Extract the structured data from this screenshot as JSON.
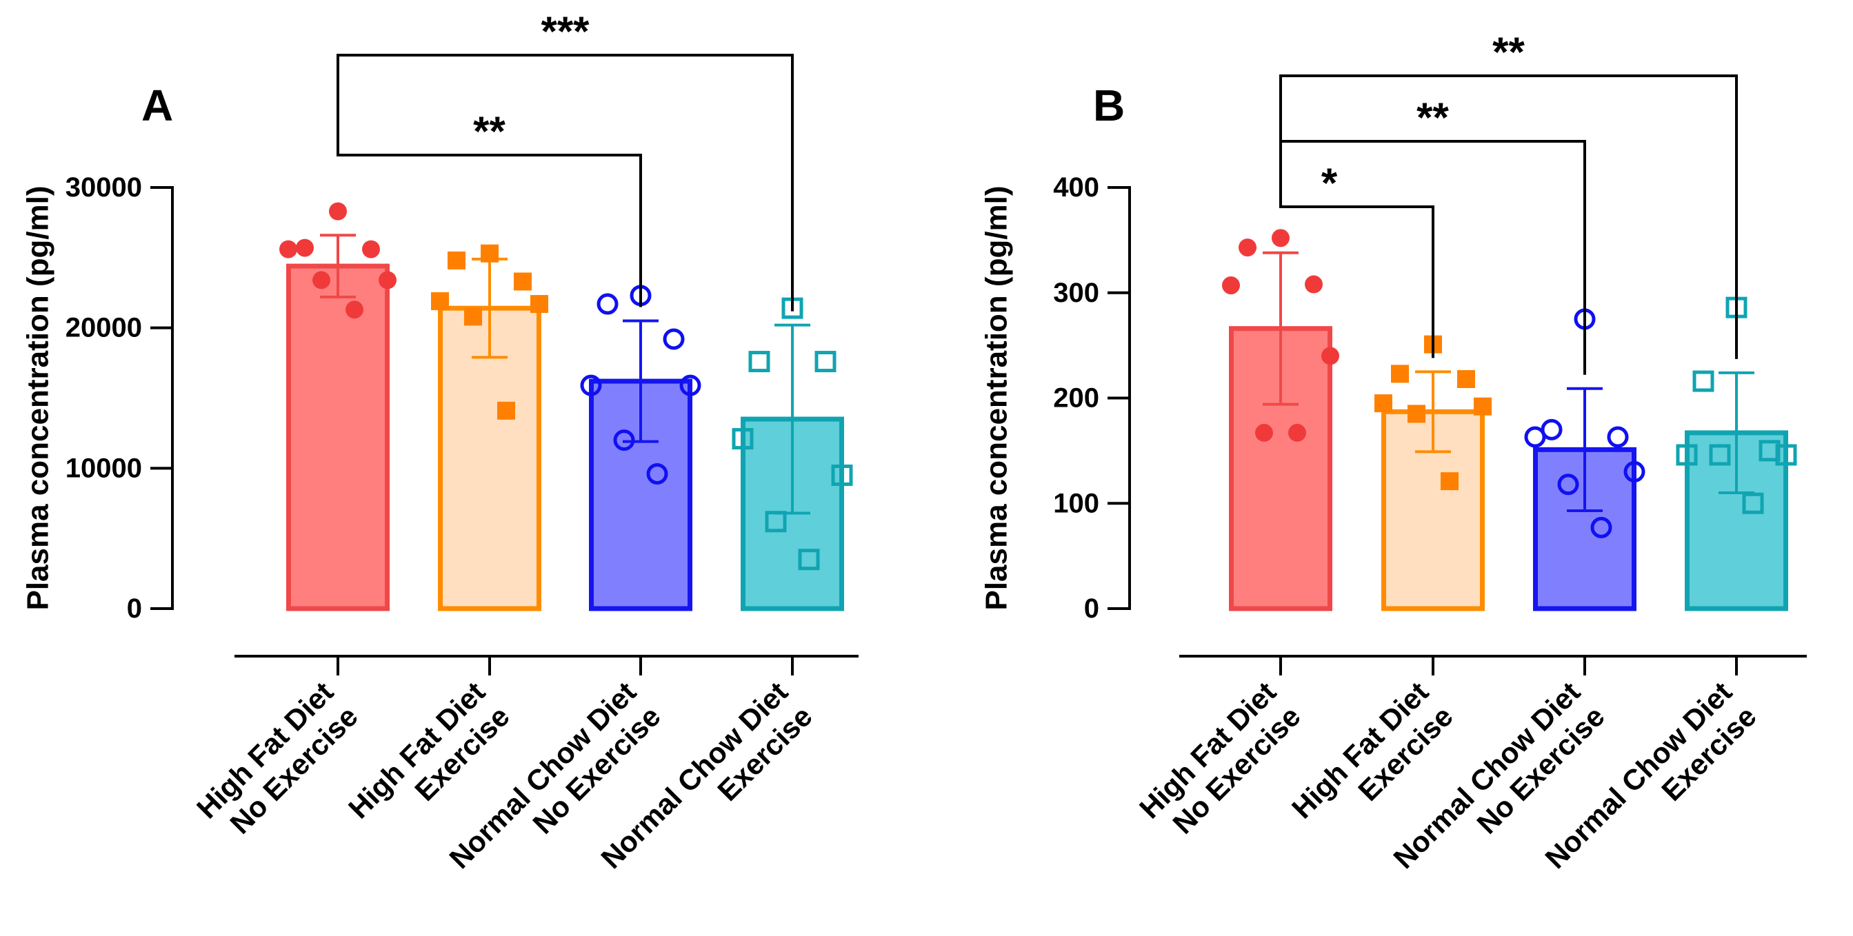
{
  "colors": {
    "red_fill": "#FF7F7F",
    "red_stroke": "#F04848",
    "red_point": "#F03A3A",
    "orange_fill": "#FFDFC0",
    "orange_stroke": "#FF8C00",
    "orange_point": "#FF8000",
    "blue_fill": "#8080FF",
    "blue_stroke": "#1515F0",
    "blue_point": "#1010F0",
    "teal_fill": "#5FCFD9",
    "teal_stroke": "#10A4B2",
    "teal_point": "#10A4B2"
  },
  "chart_data": [
    {
      "type": "bar",
      "panel": "A",
      "ylabel": "Plasma concentration (pg/ml)",
      "ylim": [
        0,
        30000
      ],
      "yticks": [
        "0",
        "10000",
        "20000",
        "30000"
      ],
      "categories": [
        {
          "line1": "High Fat Diet",
          "line2": "No Exercise"
        },
        {
          "line1": "High Fat Diet",
          "line2": "Exercise"
        },
        {
          "line1": "Normal Chow Diet",
          "line2": "No Exercise"
        },
        {
          "line1": "Normal Chow Diet",
          "line2": "Exercise"
        }
      ],
      "series": [
        {
          "name": "High Fat Diet No Exercise",
          "mean": 24400,
          "sd": 2200,
          "marker": "circle-filled",
          "color": "red",
          "points": [
            28300,
            25700,
            25600,
            25600,
            23400,
            23400,
            21300
          ]
        },
        {
          "name": "High Fat Diet Exercise",
          "mean": 21400,
          "sd": 3500,
          "marker": "square-filled",
          "color": "orange",
          "points": [
            25300,
            24800,
            23300,
            21900,
            21700,
            20800,
            14100
          ]
        },
        {
          "name": "Normal Chow Diet No Exercise",
          "mean": 16200,
          "sd": 4300,
          "marker": "circle-open",
          "color": "blue",
          "points": [
            22300,
            21700,
            19200,
            15900,
            15900,
            12000,
            9600
          ]
        },
        {
          "name": "Normal Chow Diet Exercise",
          "mean": 13500,
          "sd": 6700,
          "marker": "square-open",
          "color": "teal",
          "points": [
            21400,
            17600,
            17600,
            12100,
            9500,
            6200,
            3500
          ]
        }
      ],
      "significance": [
        {
          "from": 0,
          "to": 2,
          "label": "**"
        },
        {
          "from": 0,
          "to": 3,
          "label": "***"
        }
      ]
    },
    {
      "type": "bar",
      "panel": "B",
      "ylabel": "Plasma concentration (pg/ml)",
      "ylim": [
        0,
        400
      ],
      "yticks": [
        "0",
        "100",
        "200",
        "300",
        "400"
      ],
      "categories": [
        {
          "line1": "High Fat Diet",
          "line2": "No Exercise"
        },
        {
          "line1": "High Fat Diet",
          "line2": "Exercise"
        },
        {
          "line1": "Normal Chow Diet",
          "line2": "No Exercise"
        },
        {
          "line1": "Normal Chow Diet",
          "line2": "Exercise"
        }
      ],
      "series": [
        {
          "name": "High Fat Diet No Exercise",
          "mean": 266,
          "sd": 72,
          "marker": "circle-filled",
          "color": "red",
          "points": [
            352,
            343,
            308,
            307,
            240,
            167,
            167
          ]
        },
        {
          "name": "High Fat Diet Exercise",
          "mean": 187,
          "sd": 38,
          "marker": "square-filled",
          "color": "orange",
          "points": [
            251,
            223,
            218,
            195,
            192,
            185,
            121
          ]
        },
        {
          "name": "Normal Chow Diet No Exercise",
          "mean": 151,
          "sd": 58,
          "marker": "circle-open",
          "color": "blue",
          "points": [
            275,
            170,
            163,
            163,
            130,
            118,
            77
          ]
        },
        {
          "name": "Normal Chow Diet Exercise",
          "mean": 167,
          "sd": 57,
          "marker": "square-open",
          "color": "teal",
          "points": [
            286,
            216,
            150,
            146,
            146,
            146,
            100
          ]
        }
      ],
      "significance": [
        {
          "from": 0,
          "to": 1,
          "label": "*"
        },
        {
          "from": 0,
          "to": 2,
          "label": "**"
        },
        {
          "from": 0,
          "to": 3,
          "label": "**"
        }
      ]
    }
  ]
}
